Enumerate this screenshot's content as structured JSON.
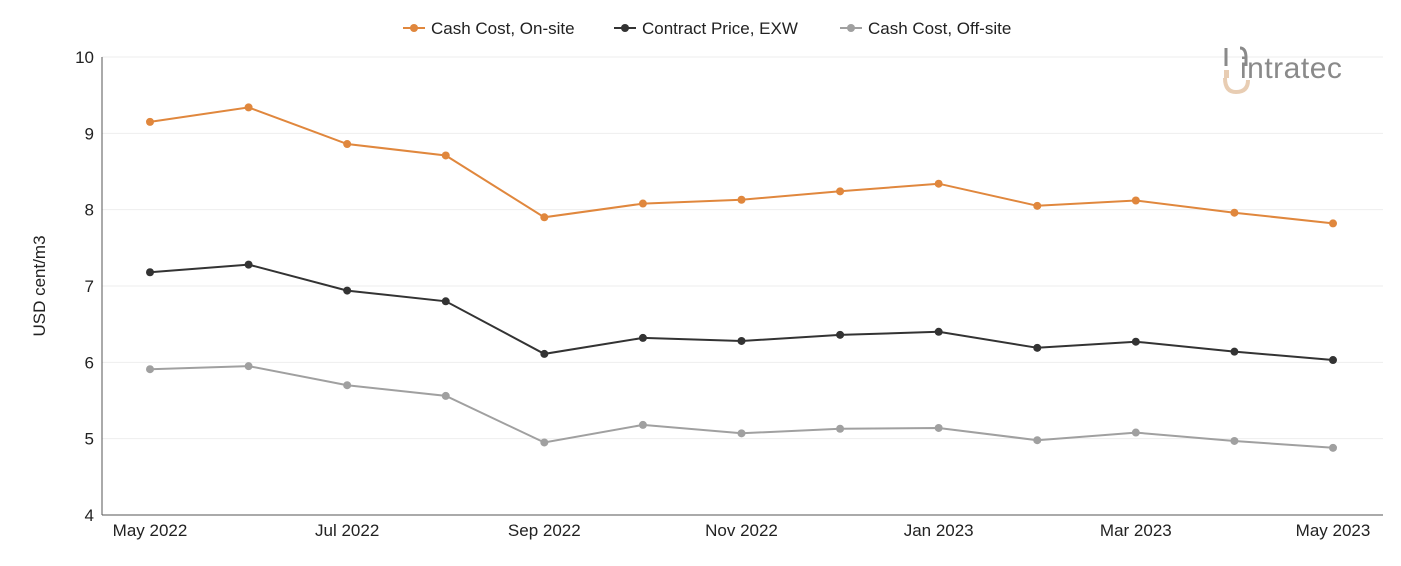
{
  "chart_data": {
    "type": "line",
    "ylabel": "USD cent/m3",
    "ylim": [
      4,
      10
    ],
    "yticks": [
      4,
      5,
      6,
      7,
      8,
      9,
      10
    ],
    "grid": true,
    "legend_position": "top-center",
    "x": [
      "May 2022",
      "Jun 2022",
      "Jul 2022",
      "Aug 2022",
      "Sep 2022",
      "Oct 2022",
      "Nov 2022",
      "Dec 2022",
      "Jan 2023",
      "Feb 2023",
      "Mar 2023",
      "Apr 2023",
      "May 2023"
    ],
    "xtick_labels": [
      "May 2022",
      "Jul 2022",
      "Sep 2022",
      "Nov 2022",
      "Jan 2023",
      "Mar 2023",
      "May 2023"
    ],
    "series": [
      {
        "name": "Cash Cost, On-site",
        "color": "#e0873d",
        "values": [
          9.15,
          9.34,
          8.86,
          8.71,
          7.9,
          8.08,
          8.13,
          8.24,
          8.34,
          8.05,
          8.12,
          7.96,
          7.82
        ]
      },
      {
        "name": "Contract Price, EXW",
        "color": "#333333",
        "values": [
          7.18,
          7.28,
          6.94,
          6.8,
          6.11,
          6.32,
          6.28,
          6.36,
          6.4,
          6.19,
          6.27,
          6.14,
          6.03
        ]
      },
      {
        "name": "Cash Cost, Off-site",
        "color": "#a0a0a0",
        "values": [
          5.91,
          5.95,
          5.7,
          5.56,
          4.95,
          5.18,
          5.07,
          5.13,
          5.14,
          4.98,
          5.08,
          4.97,
          4.88
        ]
      }
    ]
  },
  "logo": {
    "text": "intratec",
    "icon": "intratec-logo-icon",
    "accent_color": "#e8cdb3"
  }
}
